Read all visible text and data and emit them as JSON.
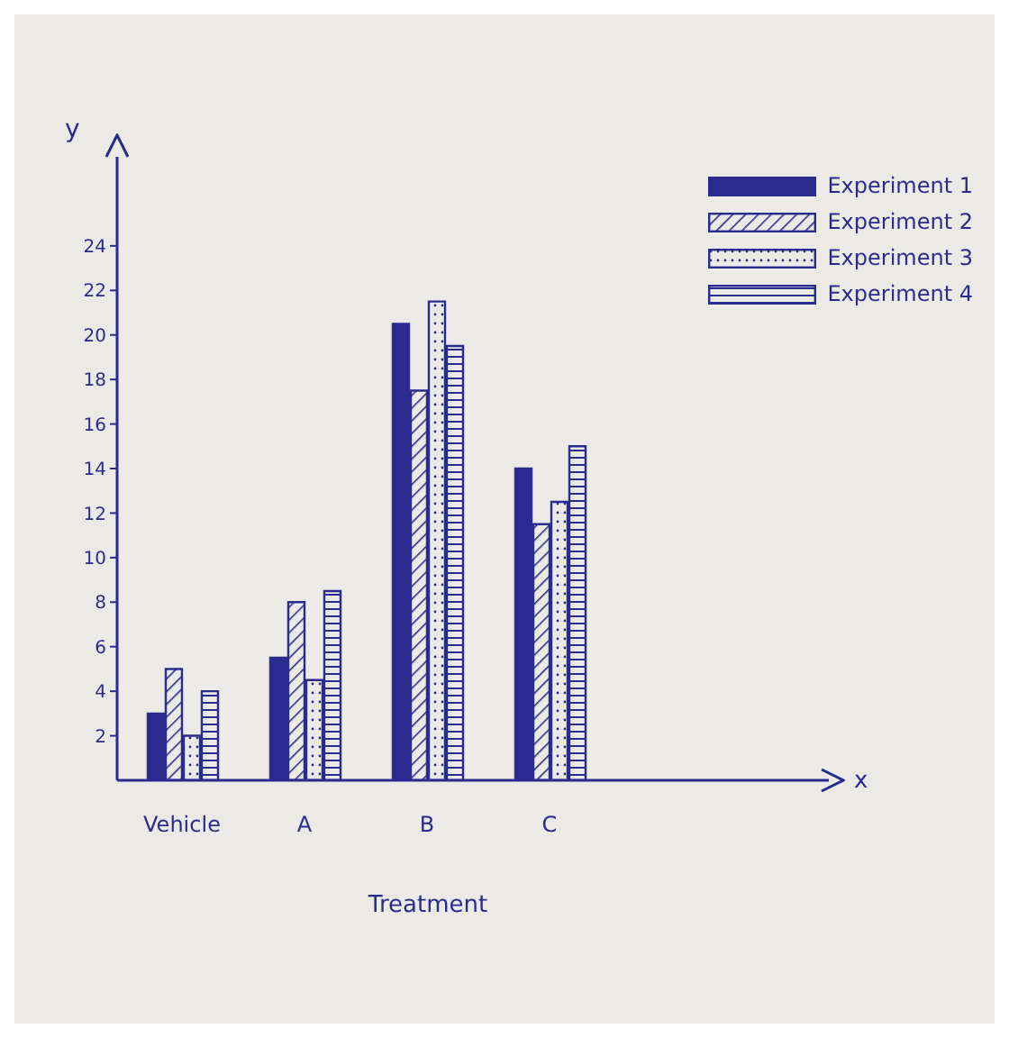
{
  "chart_data": {
    "type": "bar",
    "xlabel": "Treatment",
    "ylabel": "y",
    "annotations": [
      "x"
    ],
    "categories": [
      "Vehicle",
      "A",
      "B",
      "C"
    ],
    "series": [
      {
        "name": "Experiment 1",
        "color": "#2b2a8f",
        "values": [
          3,
          5.5,
          20.5,
          14
        ]
      },
      {
        "name": "Experiment 2",
        "color": "#2b2a8f",
        "values": [
          5,
          8,
          17.5,
          11.5
        ]
      },
      {
        "name": "Experiment 3",
        "color": "#2b2a8f",
        "values": [
          2,
          4.5,
          21.5,
          12.5
        ]
      },
      {
        "name": "Experiment 4",
        "color": "#2b2a8f",
        "values": [
          4,
          8.5,
          19.5,
          15
        ]
      }
    ],
    "ylim": [
      0,
      28
    ],
    "yticks": [
      2,
      4,
      6,
      8,
      10,
      12,
      14,
      16,
      18,
      20,
      22,
      24
    ],
    "legend": "top right"
  }
}
